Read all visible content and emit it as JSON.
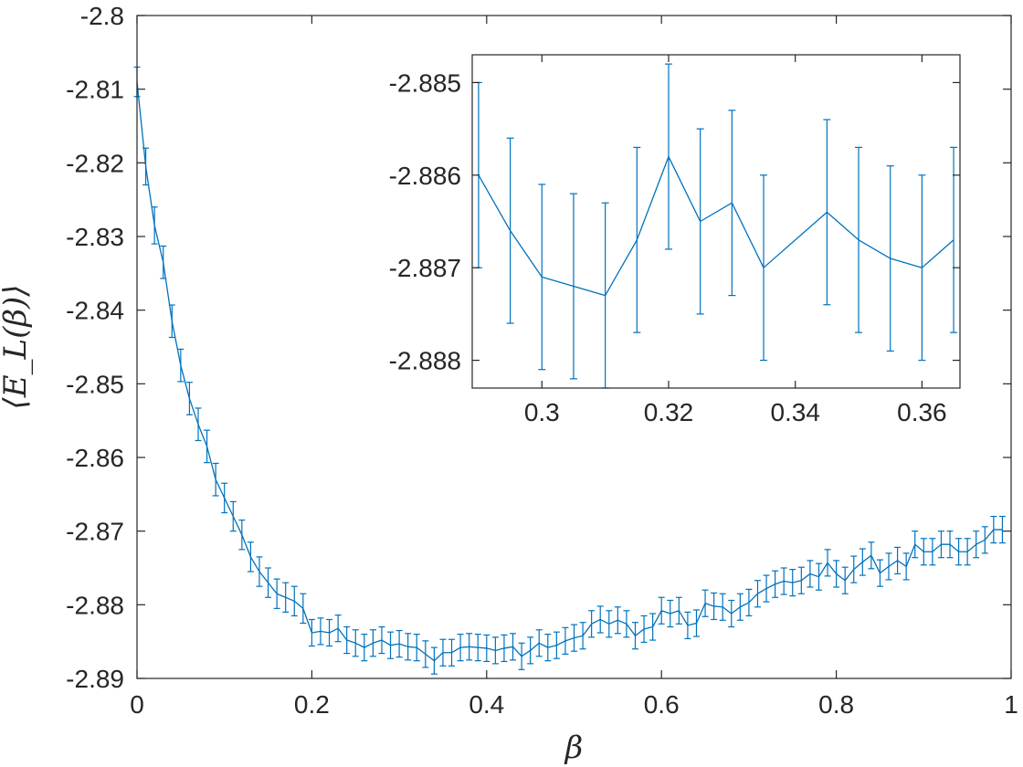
{
  "colors": {
    "series": "#0072BD",
    "axis": "#262626",
    "background": "#ffffff"
  },
  "chart_data": [
    {
      "type": "line",
      "panel": "main",
      "xlabel": "β",
      "ylabel": "⟨E_L(β)⟩",
      "xlim": [
        0,
        1
      ],
      "ylim": [
        -2.89,
        -2.8
      ],
      "xticks": [
        0,
        0.2,
        0.4,
        0.6,
        0.8,
        1
      ],
      "xtick_labels": [
        "0",
        "0.2",
        "0.4",
        "0.6",
        "0.8",
        "1"
      ],
      "yticks": [
        -2.8,
        -2.81,
        -2.82,
        -2.83,
        -2.84,
        -2.85,
        -2.86,
        -2.87,
        -2.88,
        -2.89
      ],
      "ytick_labels": [
        "-2.8",
        "-2.81",
        "-2.82",
        "-2.83",
        "-2.84",
        "-2.85",
        "-2.86",
        "-2.87",
        "-2.88",
        "-2.89"
      ],
      "grid": false,
      "error_bars": true,
      "series": [
        {
          "x": [
            0,
            0.01,
            0.02,
            0.03,
            0.04,
            0.05,
            0.06,
            0.07,
            0.08,
            0.09,
            0.1,
            0.11,
            0.12,
            0.13,
            0.14,
            0.15,
            0.16,
            0.17,
            0.18,
            0.19,
            0.2,
            0.21,
            0.22,
            0.23,
            0.24,
            0.25,
            0.26,
            0.27,
            0.28,
            0.29,
            0.3,
            0.31,
            0.32,
            0.33,
            0.34,
            0.35,
            0.36,
            0.37,
            0.38,
            0.39,
            0.4,
            0.41,
            0.42,
            0.43,
            0.44,
            0.45,
            0.46,
            0.47,
            0.48,
            0.49,
            0.5,
            0.51,
            0.52,
            0.53,
            0.54,
            0.55,
            0.56,
            0.57,
            0.58,
            0.59,
            0.6,
            0.61,
            0.62,
            0.63,
            0.64,
            0.65,
            0.66,
            0.67,
            0.68,
            0.69,
            0.7,
            0.71,
            0.72,
            0.73,
            0.74,
            0.75,
            0.76,
            0.77,
            0.78,
            0.79,
            0.8,
            0.81,
            0.82,
            0.83,
            0.84,
            0.85,
            0.86,
            0.87,
            0.88,
            0.89,
            0.9,
            0.91,
            0.92,
            0.93,
            0.94,
            0.95,
            0.96,
            0.97,
            0.98,
            0.99
          ],
          "y": [
            -2.809,
            -2.8205,
            -2.8285,
            -2.8335,
            -2.8415,
            -2.8475,
            -2.852,
            -2.8555,
            -2.8585,
            -2.863,
            -2.8655,
            -2.868,
            -2.8705,
            -2.8735,
            -2.8755,
            -2.877,
            -2.8785,
            -2.879,
            -2.8795,
            -2.8805,
            -2.8838,
            -2.8836,
            -2.8838,
            -2.8832,
            -2.8848,
            -2.8852,
            -2.8858,
            -2.8852,
            -2.8848,
            -2.8855,
            -2.8853,
            -2.8857,
            -2.8858,
            -2.8867,
            -2.8876,
            -2.8865,
            -2.8865,
            -2.8858,
            -2.8857,
            -2.8858,
            -2.8859,
            -2.8862,
            -2.8859,
            -2.8857,
            -2.887,
            -2.8862,
            -2.8852,
            -2.8858,
            -2.8855,
            -2.8849,
            -2.8845,
            -2.8842,
            -2.8826,
            -2.882,
            -2.8826,
            -2.8821,
            -2.8826,
            -2.8842,
            -2.8833,
            -2.883,
            -2.8808,
            -2.8812,
            -2.8808,
            -2.8828,
            -2.8825,
            -2.8798,
            -2.8802,
            -2.8803,
            -2.8812,
            -2.8803,
            -2.8797,
            -2.8785,
            -2.8778,
            -2.8772,
            -2.8768,
            -2.877,
            -2.8767,
            -2.8758,
            -2.8762,
            -2.8743,
            -2.8758,
            -2.8767,
            -2.8752,
            -2.8742,
            -2.8733,
            -2.8757,
            -2.8748,
            -2.874,
            -2.8748,
            -2.8718,
            -2.8728,
            -2.8728,
            -2.8718,
            -2.8718,
            -2.8728,
            -2.8728,
            -2.8718,
            -2.8712,
            -2.8698,
            -2.8698
          ],
          "err": [
            0.002,
            0.0025,
            0.0025,
            0.0022,
            0.0022,
            0.0022,
            0.0022,
            0.0022,
            0.0022,
            0.0022,
            0.002,
            0.002,
            0.002,
            0.002,
            0.002,
            0.002,
            0.002,
            0.002,
            0.002,
            0.002,
            0.0018,
            0.0018,
            0.0018,
            0.0018,
            0.0018,
            0.0018,
            0.0018,
            0.0018,
            0.0018,
            0.0018,
            0.0018,
            0.0018,
            0.0018,
            0.0018,
            0.0018,
            0.0018,
            0.0018,
            0.0018,
            0.0018,
            0.0018,
            0.0018,
            0.0018,
            0.0018,
            0.0018,
            0.0018,
            0.0018,
            0.0018,
            0.0018,
            0.0018,
            0.0018,
            0.0018,
            0.0018,
            0.0018,
            0.0018,
            0.0018,
            0.0018,
            0.0018,
            0.0018,
            0.0018,
            0.0018,
            0.0018,
            0.0018,
            0.0018,
            0.0018,
            0.0018,
            0.0018,
            0.0018,
            0.0018,
            0.0018,
            0.0018,
            0.0018,
            0.0018,
            0.0018,
            0.0018,
            0.0018,
            0.0018,
            0.0018,
            0.0018,
            0.0018,
            0.0018,
            0.0018,
            0.0018,
            0.0018,
            0.0018,
            0.0018,
            0.0018,
            0.0018,
            0.0018,
            0.0018,
            0.0018,
            0.0018,
            0.0018,
            0.0018,
            0.0018,
            0.0018,
            0.0018,
            0.0018,
            0.0018,
            0.0018,
            0.0018
          ]
        }
      ]
    },
    {
      "type": "line",
      "panel": "inset",
      "xlabel": "",
      "ylabel": "",
      "xlim": [
        0.289,
        0.366
      ],
      "ylim": [
        -2.8883,
        -2.8847
      ],
      "xticks": [
        0.3,
        0.32,
        0.34,
        0.36
      ],
      "xtick_labels": [
        "0.3",
        "0.32",
        "0.34",
        "0.36"
      ],
      "yticks": [
        -2.885,
        -2.886,
        -2.887,
        -2.888
      ],
      "ytick_labels": [
        "-2.885",
        "-2.886",
        "-2.887",
        "-2.888"
      ],
      "grid": false,
      "error_bars": true,
      "series": [
        {
          "x": [
            0.29,
            0.295,
            0.3,
            0.305,
            0.31,
            0.315,
            0.32,
            0.325,
            0.33,
            0.335,
            0.345,
            0.35,
            0.355,
            0.36,
            0.365
          ],
          "y": [
            -2.886,
            -2.8866,
            -2.8871,
            -2.8872,
            -2.8873,
            -2.8867,
            -2.8858,
            -2.8865,
            -2.8863,
            -2.887,
            -2.8864,
            -2.8867,
            -2.8869,
            -2.887,
            -2.8867
          ],
          "err": [
            0.001,
            0.001,
            0.001,
            0.001,
            0.001,
            0.001,
            0.001,
            0.001,
            0.001,
            0.001,
            0.001,
            0.001,
            0.001,
            0.001,
            0.001
          ]
        }
      ]
    }
  ]
}
